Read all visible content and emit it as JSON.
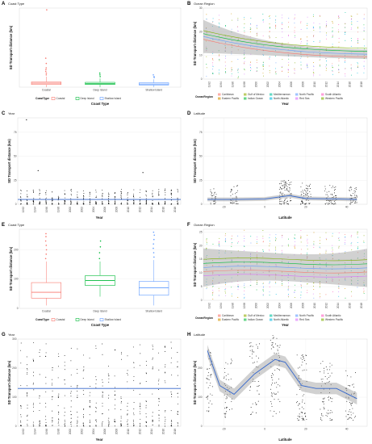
{
  "colors": {
    "coastal": "#f8766d",
    "deep_island": "#00ba38",
    "shallow_island": "#619cff",
    "trend": "#3366cc",
    "band": "#9a9a9a",
    "point": "#000000",
    "regions": [
      "#f8766d",
      "#d39200",
      "#93aa00",
      "#00ba38",
      "#00c19f",
      "#00b9e3",
      "#619cff",
      "#db72fb",
      "#ff61c3",
      "#7cae00",
      "#c77cff"
    ]
  },
  "chart_data": [
    {
      "letter": "A",
      "strip": "Coast Type",
      "type": "box",
      "xlabel": "Coast Type",
      "ylabel": "SD Transport distance (km)",
      "categories": [
        "Coastal",
        "Deep Island",
        "Shallow Island"
      ],
      "ylim": [
        0,
        90
      ],
      "box_stats": [
        {
          "min": 0,
          "q1": 3,
          "median": 4.5,
          "q3": 6,
          "max": 12,
          "outliers": [
            14,
            16,
            18,
            20,
            22,
            27,
            33,
            88
          ]
        },
        {
          "min": 0,
          "q1": 3,
          "median": 4,
          "q3": 5.5,
          "max": 10,
          "outliers": [
            12,
            14,
            16
          ]
        },
        {
          "min": 0,
          "q1": 2.5,
          "median": 3.5,
          "q3": 5,
          "max": 9,
          "outliers": [
            11,
            12,
            14
          ]
        }
      ],
      "legend": {
        "title": "CoastType",
        "labels": [
          "Coastal",
          "Deep Island",
          "Shallow Island"
        ]
      }
    },
    {
      "letter": "B",
      "strip": "Ocean Region",
      "type": "scatter_smooth",
      "xlabel": "Year",
      "ylabel": "SD Transport distance (km)",
      "x_ticks": [
        "1992",
        "1994",
        "1996",
        "1998",
        "2000",
        "2002",
        "2004",
        "2006",
        "2008",
        "2010",
        "2012",
        "2014",
        "2016",
        "2018"
      ],
      "ylim": [
        0,
        30
      ],
      "y_ticks": [
        0,
        10,
        20,
        30
      ],
      "legend": {
        "title": "OceanRegion",
        "labels": [
          "Caribbean",
          "Eastern Pacific",
          "Gulf of Mexico",
          "Indian Ocean",
          "Mediterranean",
          "North Atlantic",
          "North Pacific",
          "Red Sea",
          "South Atlantic",
          "Western Pacific"
        ]
      }
    },
    {
      "letter": "C",
      "strip": "Year",
      "type": "scatter_smooth",
      "xlabel": "Year",
      "ylabel": "SD Transport distance (km)",
      "x_ticks": [
        "1992",
        "1994",
        "1996",
        "1998",
        "2000",
        "2002",
        "2004",
        "2006",
        "2008",
        "2010",
        "2012",
        "2014",
        "2016",
        "2018"
      ],
      "ylim": [
        0,
        90
      ],
      "y_ticks": [
        0,
        25,
        50,
        75
      ],
      "outliers": [
        {
          "x": 1993,
          "y": 88
        },
        {
          "x": 1995,
          "y": 35
        },
        {
          "x": 2013,
          "y": 33
        }
      ],
      "trend": 5
    },
    {
      "letter": "D",
      "strip": "Latitude",
      "type": "scatter_smooth",
      "xlabel": "Latitude",
      "ylabel": "SD Transport distance (km)",
      "x_ticks": [
        "-20",
        "0",
        "20",
        "40"
      ],
      "xlim": [
        -30,
        50
      ],
      "ylim": [
        0,
        90
      ],
      "y_ticks": [
        0,
        25,
        50,
        75
      ]
    },
    {
      "letter": "E",
      "strip": "Coast Type",
      "type": "box",
      "xlabel": "Coast Type",
      "ylabel": "SD Transport distance (km)",
      "categories": [
        "Coastal",
        "Deep Island",
        "Shallow Island"
      ],
      "ylim": [
        0,
        270
      ],
      "y_ticks": [
        0,
        100,
        200
      ],
      "box_stats": [
        {
          "min": 10,
          "q1": 35,
          "median": 55,
          "q3": 88,
          "max": 160,
          "outliers": [
            170,
            185,
            200,
            215,
            230,
            245,
            255
          ]
        },
        {
          "min": 40,
          "q1": 78,
          "median": 95,
          "q3": 112,
          "max": 160,
          "outliers": [
            170,
            190,
            210,
            230
          ]
        },
        {
          "min": 10,
          "q1": 45,
          "median": 70,
          "q3": 92,
          "max": 165,
          "outliers": [
            175,
            190,
            205,
            220,
            235,
            250,
            260
          ]
        }
      ],
      "legend": {
        "title": "CoastType",
        "labels": [
          "Coastal",
          "Deep Island",
          "Shallow Island"
        ]
      }
    },
    {
      "letter": "F",
      "strip": "Ocean Region",
      "type": "scatter_smooth",
      "xlabel": "Year",
      "ylabel": "SD Transport distance (km)",
      "x_ticks": [
        "1992",
        "1994",
        "1996",
        "1998",
        "2000",
        "2002",
        "2004",
        "2006",
        "2008",
        "2010",
        "2012",
        "2014",
        "2016",
        "2018"
      ],
      "ylim": [
        0,
        26
      ],
      "y_ticks": [
        0,
        5,
        10,
        15,
        20,
        25
      ],
      "legend": {
        "title": "OceanRegion",
        "labels": [
          "Caribbean",
          "Eastern Pacific",
          "Gulf of Mexico",
          "Indian Ocean",
          "Mediterranean",
          "North Atlantic",
          "North Pacific",
          "Red Sea",
          "South Atlantic",
          "Western Pacific"
        ]
      }
    },
    {
      "letter": "G",
      "strip": "Year",
      "type": "scatter_smooth",
      "xlabel": "Year",
      "ylabel": "SD Transport distance (km)",
      "x_ticks": [
        "1992",
        "1994",
        "1996",
        "1998",
        "2000",
        "2002",
        "2004",
        "2006",
        "2008",
        "2010",
        "2012",
        "2014",
        "2016",
        "2018"
      ],
      "ylim": [
        0,
        300
      ],
      "y_ticks": [
        0,
        100,
        200,
        300
      ],
      "trend": 130
    },
    {
      "letter": "H",
      "strip": "Latitude",
      "type": "scatter_smooth",
      "xlabel": "Latitude",
      "ylabel": "SD Transport distance (km)",
      "x_ticks": [
        "-20",
        "0",
        "20",
        "40"
      ],
      "xlim": [
        -30,
        50
      ],
      "ylim": [
        0,
        300
      ],
      "y_ticks": [
        0,
        100,
        200
      ],
      "curve": [
        {
          "x": -28,
          "y": 260
        },
        {
          "x": -22,
          "y": 140
        },
        {
          "x": -15,
          "y": 110
        },
        {
          "x": -5,
          "y": 180
        },
        {
          "x": 5,
          "y": 230
        },
        {
          "x": 10,
          "y": 220
        },
        {
          "x": 18,
          "y": 140
        },
        {
          "x": 25,
          "y": 130
        },
        {
          "x": 35,
          "y": 130
        },
        {
          "x": 45,
          "y": 95
        }
      ]
    }
  ]
}
